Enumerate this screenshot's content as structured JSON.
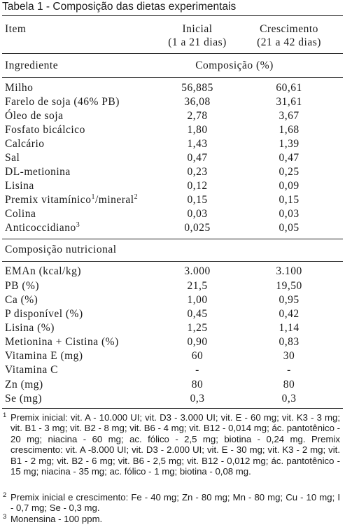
{
  "table_title": "Tabela 1 -  Composição das dietas experimentais",
  "header": {
    "item": "Item",
    "col1_line1": "Inicial",
    "col1_line2": "(1 a 21 dias)",
    "col2_line1": "Crescimento",
    "col2_line2": "(21 a 42 dias)",
    "ingrediente": "Ingrediente",
    "composicao": "Composição (%)"
  },
  "ingredients": [
    {
      "name": "Milho",
      "inicial": "56,885",
      "crescimento": "60,61"
    },
    {
      "name": "Farelo de soja (46% PB)",
      "inicial": "36,08",
      "crescimento": "31,61"
    },
    {
      "name": "Óleo de soja",
      "inicial": "2,78",
      "crescimento": "3,67"
    },
    {
      "name": "Fosfato bicálcico",
      "inicial": "1,80",
      "crescimento": "1,68"
    },
    {
      "name": "Calcário",
      "inicial": "1,43",
      "crescimento": "1,39"
    },
    {
      "name": "Sal",
      "inicial": "0,47",
      "crescimento": "0,47"
    },
    {
      "name": "DL-metionina",
      "inicial": "0,23",
      "crescimento": "0,25"
    },
    {
      "name": "Lisina",
      "inicial": "0,12",
      "crescimento": "0,09"
    },
    {
      "name": "Premix vitamínico",
      "sup1": "1",
      "name_mid": "/mineral",
      "sup2": "2",
      "inicial": "0,15",
      "crescimento": "0,15"
    },
    {
      "name": "Colina",
      "inicial": "0,03",
      "crescimento": "0,03"
    },
    {
      "name": "Anticoccidiano",
      "sup1": "3",
      "inicial": "0,025",
      "crescimento": "0,05"
    }
  ],
  "nutritional_header": "Composição nutricional",
  "nutritional": [
    {
      "name": "EMAn (kcal/kg)",
      "inicial": "3.000",
      "crescimento": "3.100"
    },
    {
      "name": "PB (%)",
      "inicial": "21,5",
      "crescimento": "19,50"
    },
    {
      "name": "Ca (%)",
      "inicial": "1,00",
      "crescimento": "0,95"
    },
    {
      "name": "P disponível (%)",
      "inicial": "0,45",
      "crescimento": "0,42"
    },
    {
      "name": "Lisina (%)",
      "inicial": "1,25",
      "crescimento": "1,14"
    },
    {
      "name": "Metionina + Cistina (%)",
      "inicial": "0,90",
      "crescimento": "0,83"
    },
    {
      "name": "Vitamina E (mg)",
      "inicial": "60",
      "crescimento": "30"
    },
    {
      "name": "Vitamina C",
      "inicial": "-",
      "crescimento": "-"
    },
    {
      "name": "Zn (mg)",
      "inicial": "80",
      "crescimento": "80"
    },
    {
      "name": "Se (mg)",
      "inicial": "0,3",
      "crescimento": "0,3"
    }
  ],
  "footnotes": [
    {
      "num": "1",
      "text": "Premix inicial: vit. A - 10.000 UI; vit. D3 - 3.000 UI; vit. E - 60 mg; vit. K3 - 3 mg; vit. B1 - 3 mg; vit. B2 - 8 mg; vit. B6 - 4 mg; vit. B12 - 0,014 mg; ác. pantotênico - 20 mg; niacina - 60 mg; ac. fólico - 2,5 mg; biotina - 0,24 mg. Premix crescimento: vit. A -8.000 UI; vit. D3 - 2.000 UI; vit. E - 30 mg; vit. K3 - 2 mg; vit. B1 - 2 mg; vit. B2 - 6 mg; vit. B6 - 2,5 mg; vit. B12 - 0,012 mg; ác. pantotênico - 15 mg; niacina - 35 mg; ac. fólico - 1 mg; biotina - 0,08 mg."
    },
    {
      "num": "2",
      "text": "Premix inicial e crescimento: Fe - 40 mg; Zn - 80 mg; Mn - 80 mg; Cu - 10 mg; I - 0,7 mg; Se - 0,3 mg."
    },
    {
      "num": "3",
      "text": "Monensina - 100 ppm."
    }
  ]
}
